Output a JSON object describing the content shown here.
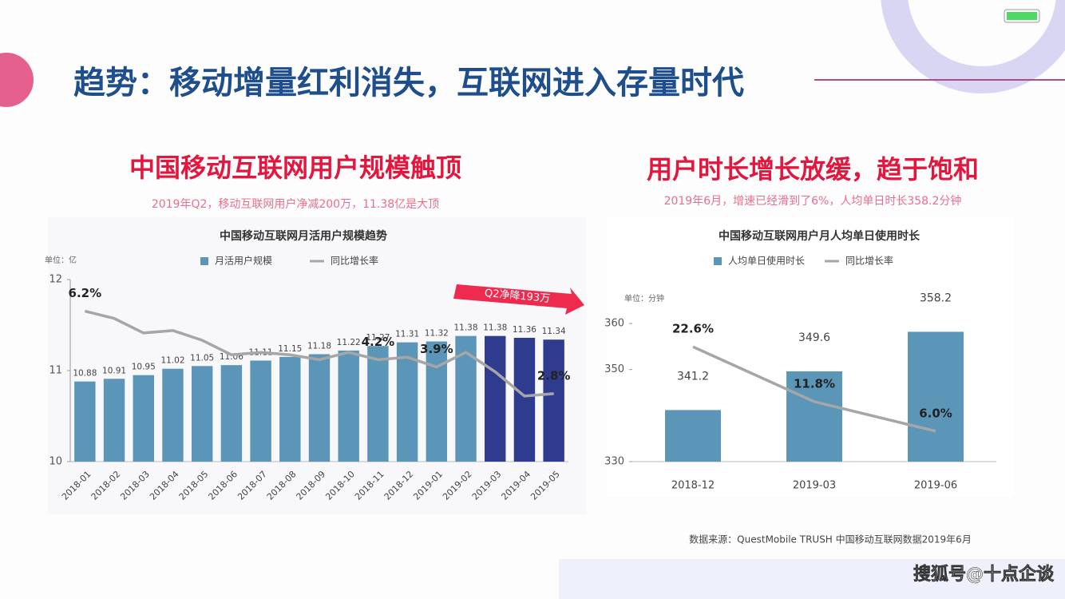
{
  "slide": {
    "title": "趋势：移动增量红利消失，互联网进入存量时代",
    "source": "数据来源：QuestMobile TRUSH 中国移动互联网数据2019年6月",
    "watermark": "搜狐号@十点企谈"
  },
  "chart_data": [
    {
      "type": "bar",
      "heading": "中国移动互联网用户规模触顶",
      "subheading": "2019年Q2，移动互联网用户净减200万，11.38亿是大顶",
      "title": "中国移动互联网月活用户规模趋势",
      "unit": "单位：亿",
      "categories": [
        "2018-01",
        "2018-02",
        "2018-03",
        "2018-04",
        "2018-05",
        "2018-06",
        "2018-07",
        "2018-08",
        "2018-09",
        "2018-10",
        "2018-11",
        "2018-12",
        "2019-01",
        "2019-02",
        "2019-03",
        "2019-04",
        "2019-05"
      ],
      "series": [
        {
          "name": "月活用户规模",
          "type": "bar",
          "color": "#5b96b8",
          "colors": [
            "#5b96b8",
            "#5b96b8",
            "#5b96b8",
            "#5b96b8",
            "#5b96b8",
            "#5b96b8",
            "#5b96b8",
            "#5b96b8",
            "#5b96b8",
            "#5b96b8",
            "#5b96b8",
            "#5b96b8",
            "#5b96b8",
            "#5b96b8",
            "#2f3b8f",
            "#2f3b8f",
            "#2f3b8f"
          ],
          "values": [
            10.88,
            10.91,
            10.95,
            11.02,
            11.05,
            11.06,
            11.11,
            11.15,
            11.18,
            11.22,
            11.27,
            11.31,
            11.32,
            11.38,
            11.38,
            11.36,
            11.34
          ]
        },
        {
          "name": "同比增长率",
          "type": "line",
          "axis": "y2",
          "color": "#a6a6a6",
          "values": [
            6.2,
            5.9,
            5.3,
            5.4,
            5.0,
            4.4,
            4.5,
            4.4,
            4.2,
            4.5,
            4.2,
            4.3,
            3.9,
            4.5,
            3.7,
            2.7,
            2.8
          ],
          "value_labels": [
            "6.2%",
            null,
            null,
            null,
            null,
            null,
            null,
            null,
            null,
            null,
            "4.2%",
            null,
            "3.9%",
            null,
            null,
            null,
            "2.8%"
          ]
        }
      ],
      "ylim": [
        10,
        12
      ],
      "yticks": [
        10,
        11,
        12
      ],
      "y2lim": [
        0,
        7.5
      ],
      "annotation": "Q2净降193万"
    },
    {
      "type": "bar",
      "heading": "用户时长增长放缓，趋于饱和",
      "subheading": "2019年6月，增速已经滑到了6%，人均单日时长358.2分钟",
      "title": "中国移动互联网用户月人均单日使用时长",
      "unit": "单位：分钟",
      "categories": [
        "2018-12",
        "2019-03",
        "2019-06"
      ],
      "series": [
        {
          "name": "人均单日使用时长",
          "type": "bar",
          "color": "#5b96b8",
          "colors": [
            "#5b96b8",
            "#5b96b8",
            "#5b96b8"
          ],
          "values": [
            341.2,
            349.6,
            358.2
          ]
        },
        {
          "name": "同比增长率",
          "type": "line",
          "axis": "y2",
          "color": "#a6a6a6",
          "values": [
            22.6,
            11.8,
            6.0
          ],
          "value_labels": [
            "22.6%",
            "11.8%",
            "6.0%"
          ]
        }
      ],
      "ylim": [
        330,
        362
      ],
      "yticks": [
        330,
        350,
        360
      ],
      "y2lim": [
        0,
        29
      ]
    }
  ]
}
